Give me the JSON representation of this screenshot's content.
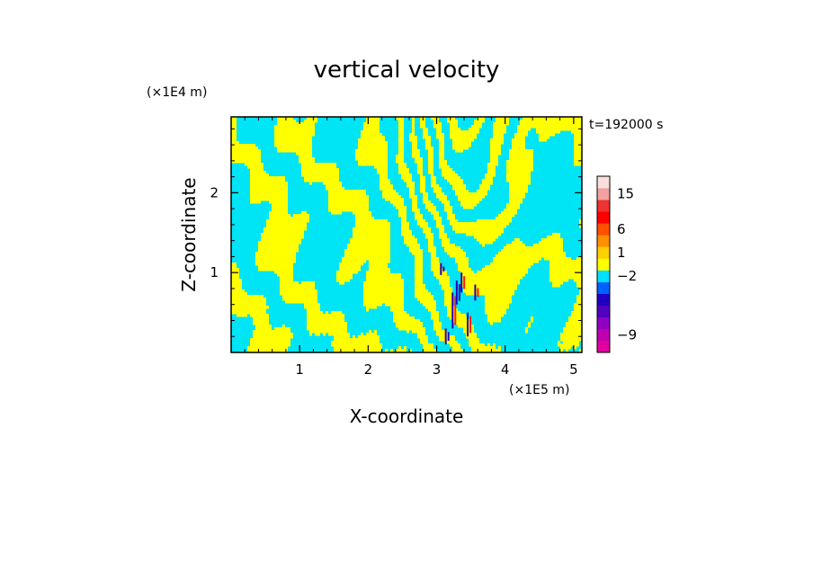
{
  "chart_data": {
    "type": "heatmap",
    "title": "vertical velocity",
    "xlabel": "X-coordinate",
    "ylabel": "Z-coordinate",
    "x_scale_label": "(×1E5 m)",
    "y_scale_label": "(×1E4 m)",
    "time_label": "t=192000 s",
    "xlim": [
      0,
      5.12
    ],
    "ylim": [
      0,
      2.95
    ],
    "x_ticks": [
      1,
      2,
      3,
      4,
      5
    ],
    "y_ticks": [
      1,
      2
    ],
    "x_tick_labels": [
      "1",
      "2",
      "3",
      "4",
      "5"
    ],
    "y_tick_labels": [
      "1",
      "2"
    ],
    "colorbar": {
      "labels": [
        "15",
        "6",
        "1",
        "−2",
        "−9"
      ],
      "bands": [
        {
          "color": "#e000a0"
        },
        {
          "color": "#c000b0"
        },
        {
          "color": "#9000c0"
        },
        {
          "color": "#5000c0"
        },
        {
          "color": "#2000c0"
        },
        {
          "color": "#0060ff"
        },
        {
          "color": "#00e0ff"
        },
        {
          "color": "#ffff00"
        },
        {
          "color": "#ffd000"
        },
        {
          "color": "#ff9000"
        },
        {
          "color": "#ff5000"
        },
        {
          "color": "#ff0000"
        },
        {
          "color": "#ee3333"
        },
        {
          "color": "#f2a0a0"
        },
        {
          "color": "#fbdede"
        }
      ]
    },
    "field_colors": {
      "background": "#00e5f5",
      "positive": "#ffff00",
      "strong_positive": "#ff2000",
      "strong_negative": "#2000c0"
    }
  }
}
